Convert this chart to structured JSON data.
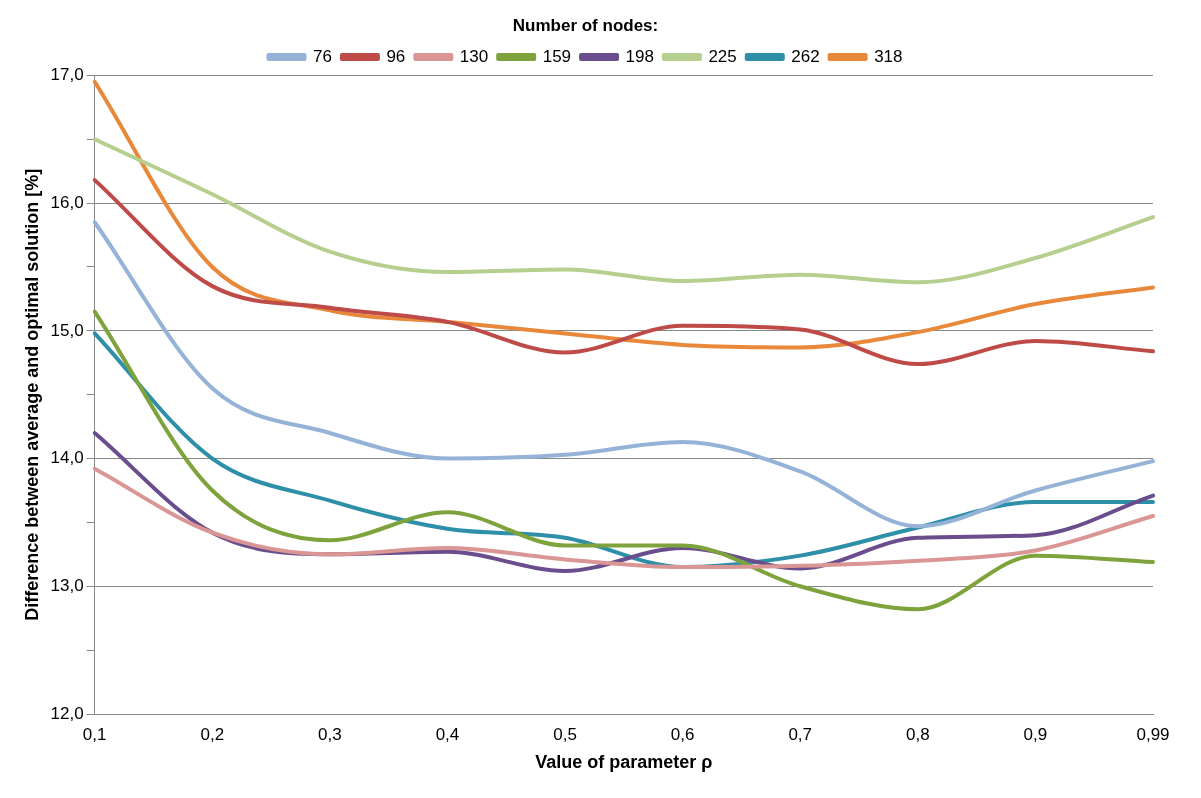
{
  "chart_data": {
    "type": "line",
    "xlabel": "Value of parameter ρ",
    "ylabel": "Difference between average and optimal solution [%]",
    "legend_title": "Number of nodes:",
    "legend": "top",
    "grid": "y",
    "categories": [
      "0,1",
      "0,2",
      "0,3",
      "0,4",
      "0,5",
      "0,6",
      "0,7",
      "0,8",
      "0,9",
      "0,99"
    ],
    "ylim": [
      12,
      17
    ],
    "yticks": [
      {
        "value": 12,
        "label": "12,0"
      },
      {
        "value": 12.5,
        "label": null
      },
      {
        "value": 13,
        "label": "13,0"
      },
      {
        "value": 13.5,
        "label": null
      },
      {
        "value": 14,
        "label": "14,0"
      },
      {
        "value": 14.5,
        "label": null
      },
      {
        "value": 15,
        "label": "15,0"
      },
      {
        "value": 15.5,
        "label": null
      },
      {
        "value": 16,
        "label": "16,0"
      },
      {
        "value": 16.5,
        "label": null
      },
      {
        "value": 17,
        "label": "17,0"
      }
    ],
    "series": [
      {
        "name": "76",
        "color": "#95b3d7",
        "values": [
          15.85,
          14.55,
          14.2,
          14.0,
          14.03,
          14.13,
          13.9,
          13.47,
          13.75,
          13.98
        ]
      },
      {
        "name": "96",
        "color": "#be4b48",
        "values": [
          16.18,
          15.35,
          15.18,
          15.07,
          14.83,
          15.04,
          15.01,
          14.74,
          14.92,
          14.84
        ]
      },
      {
        "name": "130",
        "color": "#d99694",
        "values": [
          13.92,
          13.42,
          13.25,
          13.3,
          13.21,
          13.15,
          13.16,
          13.2,
          13.28,
          13.55
        ]
      },
      {
        "name": "159",
        "color": "#7ea33c",
        "values": [
          15.15,
          13.75,
          13.36,
          13.58,
          13.32,
          13.32,
          13.0,
          12.82,
          13.24,
          13.19
        ]
      },
      {
        "name": "198",
        "color": "#6a4d8c",
        "values": [
          14.2,
          13.42,
          13.25,
          13.27,
          13.12,
          13.3,
          13.14,
          13.38,
          13.4,
          13.71
        ]
      },
      {
        "name": "225",
        "color": "#b6cf8f",
        "values": [
          16.5,
          16.07,
          15.62,
          15.46,
          15.48,
          15.39,
          15.44,
          15.38,
          15.57,
          15.89
        ]
      },
      {
        "name": "262",
        "color": "#2e8fa8",
        "values": [
          14.98,
          14.0,
          13.67,
          13.45,
          13.38,
          13.15,
          13.24,
          13.46,
          13.66,
          13.66
        ]
      },
      {
        "name": "318",
        "color": "#e8883a",
        "values": [
          16.95,
          15.5,
          15.16,
          15.07,
          14.98,
          14.89,
          14.87,
          14.99,
          15.21,
          15.34
        ]
      }
    ]
  }
}
